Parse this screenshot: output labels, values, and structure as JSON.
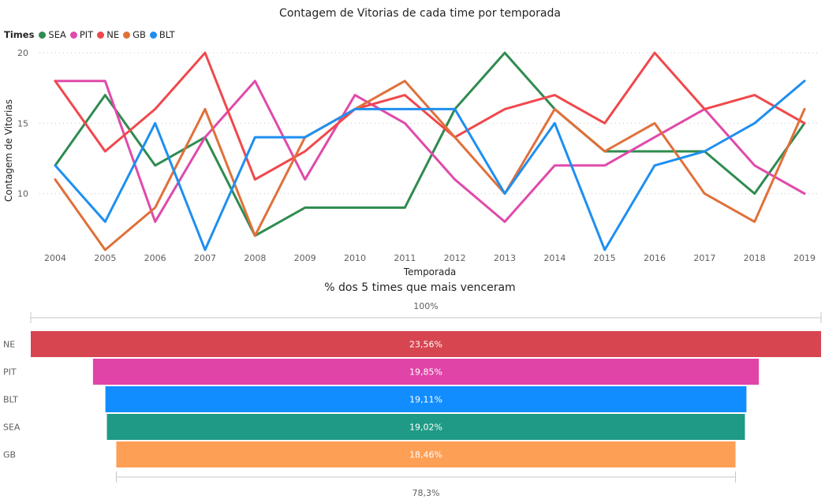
{
  "chart_data": [
    {
      "type": "line",
      "title": "Contagem de Vitorias de cada time por temporada",
      "xlabel": "Temporada",
      "ylabel": "Contagem de Vitorias",
      "legend_title": "Times",
      "legend_position": "top-left",
      "ylim": [
        5.5,
        20.5
      ],
      "yticks": [
        10,
        15,
        20
      ],
      "grid": true,
      "x": [
        "2004",
        "2005",
        "2006",
        "2007",
        "2008",
        "2009",
        "2010",
        "2011",
        "2012",
        "2013",
        "2014",
        "2015",
        "2016",
        "2017",
        "2018",
        "2019"
      ],
      "series": [
        {
          "name": "SEA",
          "color": "#2e8b4f",
          "values": [
            12,
            17,
            12,
            14,
            7,
            9,
            9,
            9,
            16,
            20,
            16,
            13,
            13,
            13,
            10,
            15
          ]
        },
        {
          "name": "PIT",
          "color": "#e04aaa",
          "values": [
            18,
            18,
            8,
            14,
            18,
            11,
            17,
            15,
            11,
            8,
            12,
            12,
            14,
            16,
            12,
            10
          ]
        },
        {
          "name": "NE",
          "color": "#f0484c",
          "values": [
            18,
            13,
            16,
            20,
            11,
            13,
            16,
            17,
            14,
            16,
            17,
            15,
            20,
            16,
            17,
            15
          ]
        },
        {
          "name": "GB",
          "color": "#e0703a",
          "values": [
            11,
            6,
            9,
            16,
            7,
            14,
            16,
            18,
            14,
            10,
            16,
            13,
            15,
            10,
            8,
            16
          ]
        },
        {
          "name": "BLT",
          "color": "#1e8ff0",
          "values": [
            12,
            8,
            15,
            6,
            14,
            14,
            16,
            16,
            16,
            10,
            15,
            6,
            12,
            13,
            15,
            18
          ]
        }
      ]
    },
    {
      "type": "funnel",
      "title": "% dos 5 times que mais venceram",
      "top_label": "100%",
      "bottom_label": "78,3%",
      "categories": [
        "NE",
        "PIT",
        "BLT",
        "SEA",
        "GB"
      ],
      "values": [
        23.56,
        19.85,
        19.11,
        19.02,
        18.46
      ],
      "value_labels": [
        "23,56%",
        "19,85%",
        "19,11%",
        "19,02%",
        "18,46%"
      ],
      "colors": [
        "#d64550",
        "#e044a7",
        "#118dff",
        "#1f9a86",
        "#fe9f56"
      ]
    }
  ]
}
